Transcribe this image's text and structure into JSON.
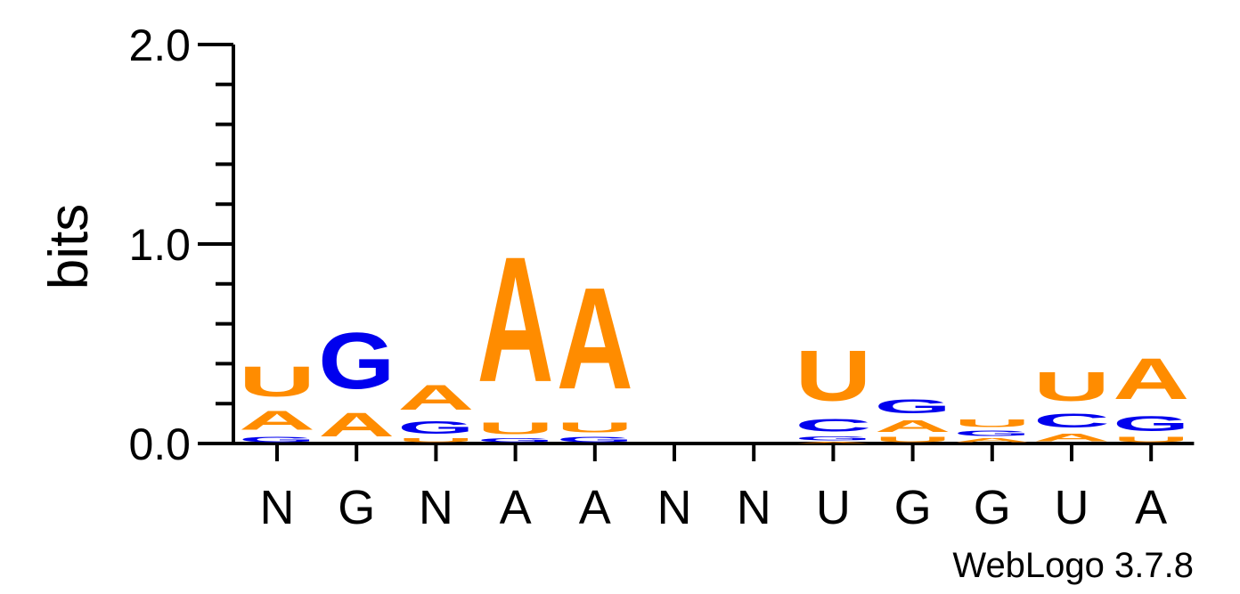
{
  "chart_data": {
    "type": "sequence-logo",
    "ylabel": "bits",
    "ylim": [
      0,
      2.0
    ],
    "yticks": [
      {
        "value": 0.0,
        "label": "0.0"
      },
      {
        "value": 1.0,
        "label": "1.0"
      },
      {
        "value": 2.0,
        "label": "2.0"
      }
    ],
    "colors": {
      "A": "#ff8c00",
      "U": "#ff8c00",
      "G": "#0000ee",
      "C": "#0000ee"
    },
    "positions": [
      {
        "label": "N",
        "stack": [
          {
            "letter": "G",
            "bits": 0.04
          },
          {
            "letter": "A",
            "bits": 0.15
          },
          {
            "letter": "U",
            "bits": 0.24
          }
        ]
      },
      {
        "label": "G",
        "stack": [
          {
            "letter": "A",
            "bits": 0.19
          },
          {
            "letter": "G",
            "bits": 0.45
          }
        ]
      },
      {
        "label": "N",
        "stack": [
          {
            "letter": "U",
            "bits": 0.03
          },
          {
            "letter": "G",
            "bits": 0.1
          },
          {
            "letter": "A",
            "bits": 0.2
          }
        ]
      },
      {
        "label": "A",
        "stack": [
          {
            "letter": "G",
            "bits": 0.03
          },
          {
            "letter": "U",
            "bits": 0.09
          },
          {
            "letter": "A",
            "bits": 1.0
          }
        ]
      },
      {
        "label": "A",
        "stack": [
          {
            "letter": "G",
            "bits": 0.04
          },
          {
            "letter": "U",
            "bits": 0.08
          },
          {
            "letter": "A",
            "bits": 0.81
          }
        ]
      },
      {
        "label": "N",
        "stack": []
      },
      {
        "label": "N",
        "stack": []
      },
      {
        "label": "U",
        "stack": [
          {
            "letter": "A",
            "bits": 0.01
          },
          {
            "letter": "G",
            "bits": 0.03
          },
          {
            "letter": "C",
            "bits": 0.1
          },
          {
            "letter": "U",
            "bits": 0.4
          }
        ]
      },
      {
        "label": "G",
        "stack": [
          {
            "letter": "U",
            "bits": 0.04
          },
          {
            "letter": "A",
            "bits": 0.09
          },
          {
            "letter": "G",
            "bits": 0.11
          }
        ]
      },
      {
        "label": "G",
        "stack": [
          {
            "letter": "A",
            "bits": 0.03
          },
          {
            "letter": "G",
            "bits": 0.04
          },
          {
            "letter": "U",
            "bits": 0.06
          }
        ]
      },
      {
        "label": "U",
        "stack": [
          {
            "letter": "A",
            "bits": 0.06
          },
          {
            "letter": "C",
            "bits": 0.11
          },
          {
            "letter": "U",
            "bits": 0.23
          }
        ]
      },
      {
        "label": "A",
        "stack": [
          {
            "letter": "U",
            "bits": 0.04
          },
          {
            "letter": "G",
            "bits": 0.12
          },
          {
            "letter": "A",
            "bits": 0.33
          }
        ]
      }
    ]
  },
  "footer": {
    "credit": "WebLogo 3.7.8"
  }
}
